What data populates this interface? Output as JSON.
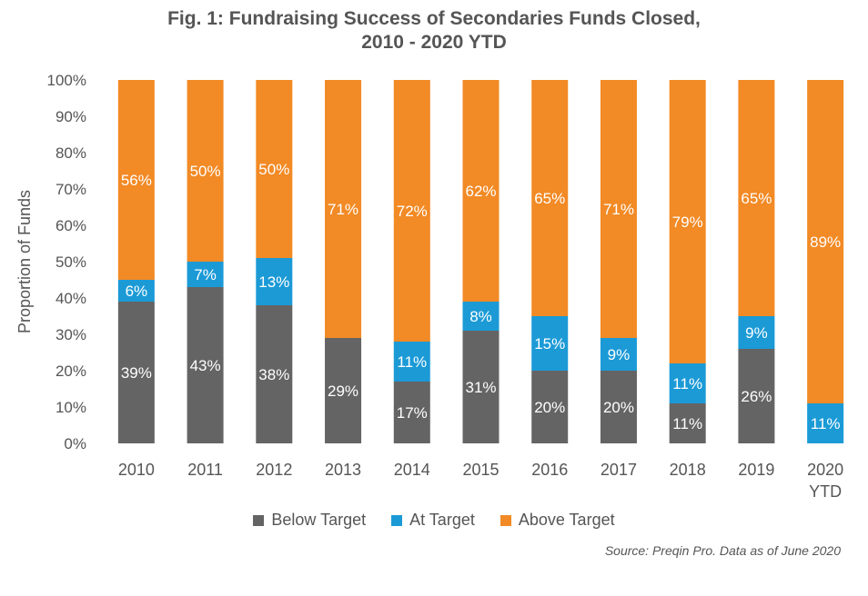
{
  "chart_data": {
    "type": "bar",
    "stacked": true,
    "title": "Fig. 1: Fundraising Success of Secondaries Funds Closed,",
    "subtitle": "2010 - 2020 YTD",
    "ylabel": "Proportion of Funds",
    "xlabel": "",
    "ylim": [
      0,
      100
    ],
    "yticks": [
      "0%",
      "10%",
      "20%",
      "30%",
      "40%",
      "50%",
      "60%",
      "70%",
      "80%",
      "90%",
      "100%"
    ],
    "categories": [
      "2010",
      "2011",
      "2012",
      "2013",
      "2014",
      "2015",
      "2016",
      "2017",
      "2018",
      "2019",
      "2020 YTD"
    ],
    "series": [
      {
        "name": "Below Target",
        "color": "#646464",
        "values": [
          39,
          43,
          38,
          29,
          17,
          31,
          20,
          20,
          11,
          26,
          0
        ]
      },
      {
        "name": "At Target",
        "color": "#1b9ad6",
        "values": [
          6,
          7,
          13,
          0,
          11,
          8,
          15,
          9,
          11,
          9,
          11
        ]
      },
      {
        "name": "Above Target",
        "color": "#f28a25",
        "values": [
          56,
          50,
          50,
          71,
          72,
          62,
          65,
          71,
          79,
          65,
          89
        ]
      }
    ],
    "data_labels": [
      [
        "39%",
        "43%",
        "38%",
        "29%",
        "17%",
        "31%",
        "20%",
        "20%",
        "11%",
        "26%",
        ""
      ],
      [
        "6%",
        "7%",
        "13%",
        "",
        "11%",
        "8%",
        "15%",
        "9%",
        "11%",
        "9%",
        "11%"
      ],
      [
        "56%",
        "50%",
        "50%",
        "71%",
        "72%",
        "62%",
        "65%",
        "71%",
        "79%",
        "65%",
        "89%"
      ]
    ],
    "legend_position": "bottom",
    "grid": false
  },
  "source": "Source: Preqin Pro. Data as of June 2020"
}
